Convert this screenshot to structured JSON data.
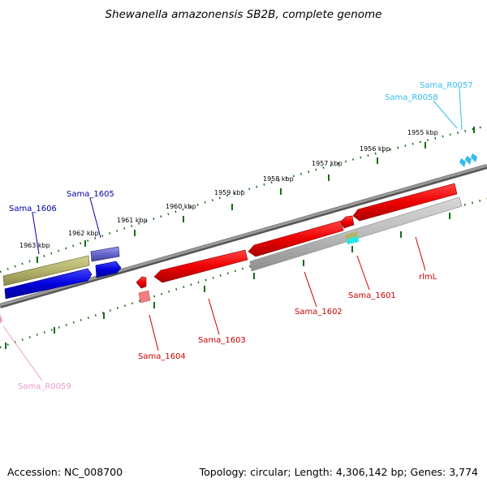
{
  "map": {
    "title": "Shewanella amazonensis SB2B, complete genome",
    "accession": "Accession: NC_008700",
    "stats": "Topology: circular; Length: 4,306,142 bp; Genes: 3,774"
  },
  "ticks": [
    "1955 kbp",
    "1956 kbp",
    "1957 kbp",
    "1958 kbp",
    "1959 kbp",
    "1960 kbp",
    "1961 kbp",
    "1962 kbp",
    "1963 kbp"
  ],
  "genes": {
    "sama_r0057": "Sama_R0057",
    "sama_r0058": "Sama_R0058",
    "sama_1605": "Sama_1605",
    "sama_1606": "Sama_1606",
    "sama_1604": "Sama_1604",
    "sama_1603": "Sama_1603",
    "sama_1602": "Sama_1602",
    "sama_1601": "Sama_1601",
    "rlml": "rlmL",
    "sama_r0059": "Sama_R0059"
  },
  "colors": {
    "forward_cds": "#0000dd",
    "reverse_cds": "#dd0000",
    "backbone": "#808080",
    "tick": "#1a6b1a",
    "trna": "#33bbee",
    "rrna_pink": "#ee99cc",
    "olive": "#b3b36b",
    "grey_feature": "#b8b8b8"
  }
}
